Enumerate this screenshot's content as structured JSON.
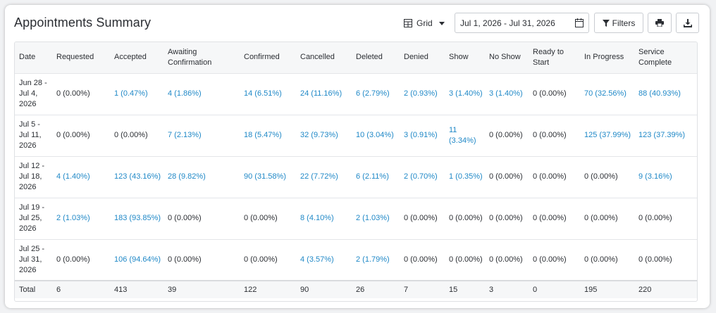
{
  "title": "Appointments Summary",
  "toolbar": {
    "view_label": "Grid",
    "date_range": "Jul 1, 2026 - Jul 31, 2026",
    "filters_label": "Filters"
  },
  "colors": {
    "link": "#1f88c7",
    "text": "#2b2e33"
  },
  "table": {
    "columns": [
      "Date",
      "Requested",
      "Accepted",
      "Awaiting Confirmation",
      "Confirmed",
      "Cancelled",
      "Deleted",
      "Denied",
      "Show",
      "No Show",
      "Ready to Start",
      "In Progress",
      "Service Complete"
    ],
    "rows": [
      {
        "date": "Jun 28 - Jul 4, 2026",
        "cells": [
          {
            "text": "0 (0.00%)",
            "link": false
          },
          {
            "text": "1 (0.47%)",
            "link": true
          },
          {
            "text": "4 (1.86%)",
            "link": true
          },
          {
            "text": "14 (6.51%)",
            "link": true
          },
          {
            "text": "24 (11.16%)",
            "link": true
          },
          {
            "text": "6 (2.79%)",
            "link": true
          },
          {
            "text": "2 (0.93%)",
            "link": true
          },
          {
            "text": "3 (1.40%)",
            "link": true
          },
          {
            "text": "3 (1.40%)",
            "link": true
          },
          {
            "text": "0 (0.00%)",
            "link": false
          },
          {
            "text": "70 (32.56%)",
            "link": true
          },
          {
            "text": "88 (40.93%)",
            "link": true
          }
        ]
      },
      {
        "date": "Jul 5 - Jul 11, 2026",
        "cells": [
          {
            "text": "0 (0.00%)",
            "link": false
          },
          {
            "text": "0 (0.00%)",
            "link": false
          },
          {
            "text": "7 (2.13%)",
            "link": true
          },
          {
            "text": "18 (5.47%)",
            "link": true
          },
          {
            "text": "32 (9.73%)",
            "link": true
          },
          {
            "text": "10 (3.04%)",
            "link": true
          },
          {
            "text": "3 (0.91%)",
            "link": true
          },
          {
            "text": "11 (3.34%)",
            "link": true
          },
          {
            "text": "0 (0.00%)",
            "link": false
          },
          {
            "text": "0 (0.00%)",
            "link": false
          },
          {
            "text": "125 (37.99%)",
            "link": true
          },
          {
            "text": "123 (37.39%)",
            "link": true
          }
        ]
      },
      {
        "date": "Jul 12 - Jul 18, 2026",
        "cells": [
          {
            "text": "4 (1.40%)",
            "link": true
          },
          {
            "text": "123 (43.16%)",
            "link": true
          },
          {
            "text": "28 (9.82%)",
            "link": true
          },
          {
            "text": "90 (31.58%)",
            "link": true
          },
          {
            "text": "22 (7.72%)",
            "link": true
          },
          {
            "text": "6 (2.11%)",
            "link": true
          },
          {
            "text": "2 (0.70%)",
            "link": true
          },
          {
            "text": "1 (0.35%)",
            "link": true
          },
          {
            "text": "0 (0.00%)",
            "link": false
          },
          {
            "text": "0 (0.00%)",
            "link": false
          },
          {
            "text": "0 (0.00%)",
            "link": false
          },
          {
            "text": "9 (3.16%)",
            "link": true
          }
        ]
      },
      {
        "date": "Jul 19 - Jul 25, 2026",
        "cells": [
          {
            "text": "2 (1.03%)",
            "link": true
          },
          {
            "text": "183 (93.85%)",
            "link": true
          },
          {
            "text": "0 (0.00%)",
            "link": false
          },
          {
            "text": "0 (0.00%)",
            "link": false
          },
          {
            "text": "8 (4.10%)",
            "link": true
          },
          {
            "text": "2 (1.03%)",
            "link": true
          },
          {
            "text": "0 (0.00%)",
            "link": false
          },
          {
            "text": "0 (0.00%)",
            "link": false
          },
          {
            "text": "0 (0.00%)",
            "link": false
          },
          {
            "text": "0 (0.00%)",
            "link": false
          },
          {
            "text": "0 (0.00%)",
            "link": false
          },
          {
            "text": "0 (0.00%)",
            "link": false
          }
        ]
      },
      {
        "date": "Jul 25 - Jul 31, 2026",
        "cells": [
          {
            "text": "0 (0.00%)",
            "link": false
          },
          {
            "text": "106 (94.64%)",
            "link": true
          },
          {
            "text": "0 (0.00%)",
            "link": false
          },
          {
            "text": "0 (0.00%)",
            "link": false
          },
          {
            "text": "4 (3.57%)",
            "link": true
          },
          {
            "text": "2 (1.79%)",
            "link": true
          },
          {
            "text": "0 (0.00%)",
            "link": false
          },
          {
            "text": "0 (0.00%)",
            "link": false
          },
          {
            "text": "0 (0.00%)",
            "link": false
          },
          {
            "text": "0 (0.00%)",
            "link": false
          },
          {
            "text": "0 (0.00%)",
            "link": false
          },
          {
            "text": "0 (0.00%)",
            "link": false
          }
        ]
      }
    ],
    "totals": [
      "Total",
      "6",
      "413",
      "39",
      "122",
      "90",
      "26",
      "7",
      "15",
      "3",
      "0",
      "195",
      "220"
    ]
  }
}
